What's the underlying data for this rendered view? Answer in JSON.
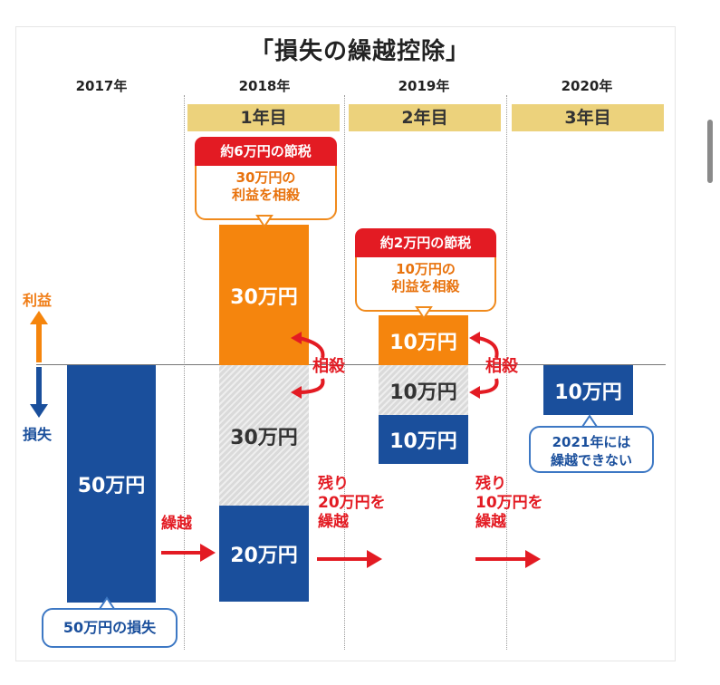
{
  "title": "「損失の繰越控除」",
  "years": [
    "2017年",
    "2018年",
    "2019年",
    "2020年"
  ],
  "phases": [
    "1年目",
    "2年目",
    "3年目"
  ],
  "axis": {
    "profit": "利益",
    "loss": "損失"
  },
  "y2017": {
    "loss_bar": "50万円",
    "loss_label": "50万円の損失"
  },
  "carry_label": "繰越",
  "y2018": {
    "profit_bar": "30万円",
    "offset_bar": "30万円",
    "remaining_bar": "20万円",
    "saving_head": "約6万円の節税",
    "saving_body1": "30万円の",
    "saving_body2": "利益を相殺",
    "offset_label": "相殺",
    "remain_1": "残り",
    "remain_2": "20万円を",
    "remain_3": "繰越"
  },
  "y2019": {
    "profit_bar": "10万円",
    "offset_bar": "10万円",
    "remaining_bar": "10万円",
    "saving_head": "約2万円の節税",
    "saving_body1": "10万円の",
    "saving_body2": "利益を相殺",
    "offset_label": "相殺",
    "remain_1": "残り",
    "remain_2": "10万円を",
    "remain_3": "繰越"
  },
  "y2020": {
    "loss_bar": "10万円",
    "note1": "2021年には",
    "note2": "繰越できない"
  },
  "colors": {
    "navy": "#1a4f9c",
    "orange": "#f5850d",
    "red": "#e31b23",
    "gold": "#ecd27c"
  }
}
